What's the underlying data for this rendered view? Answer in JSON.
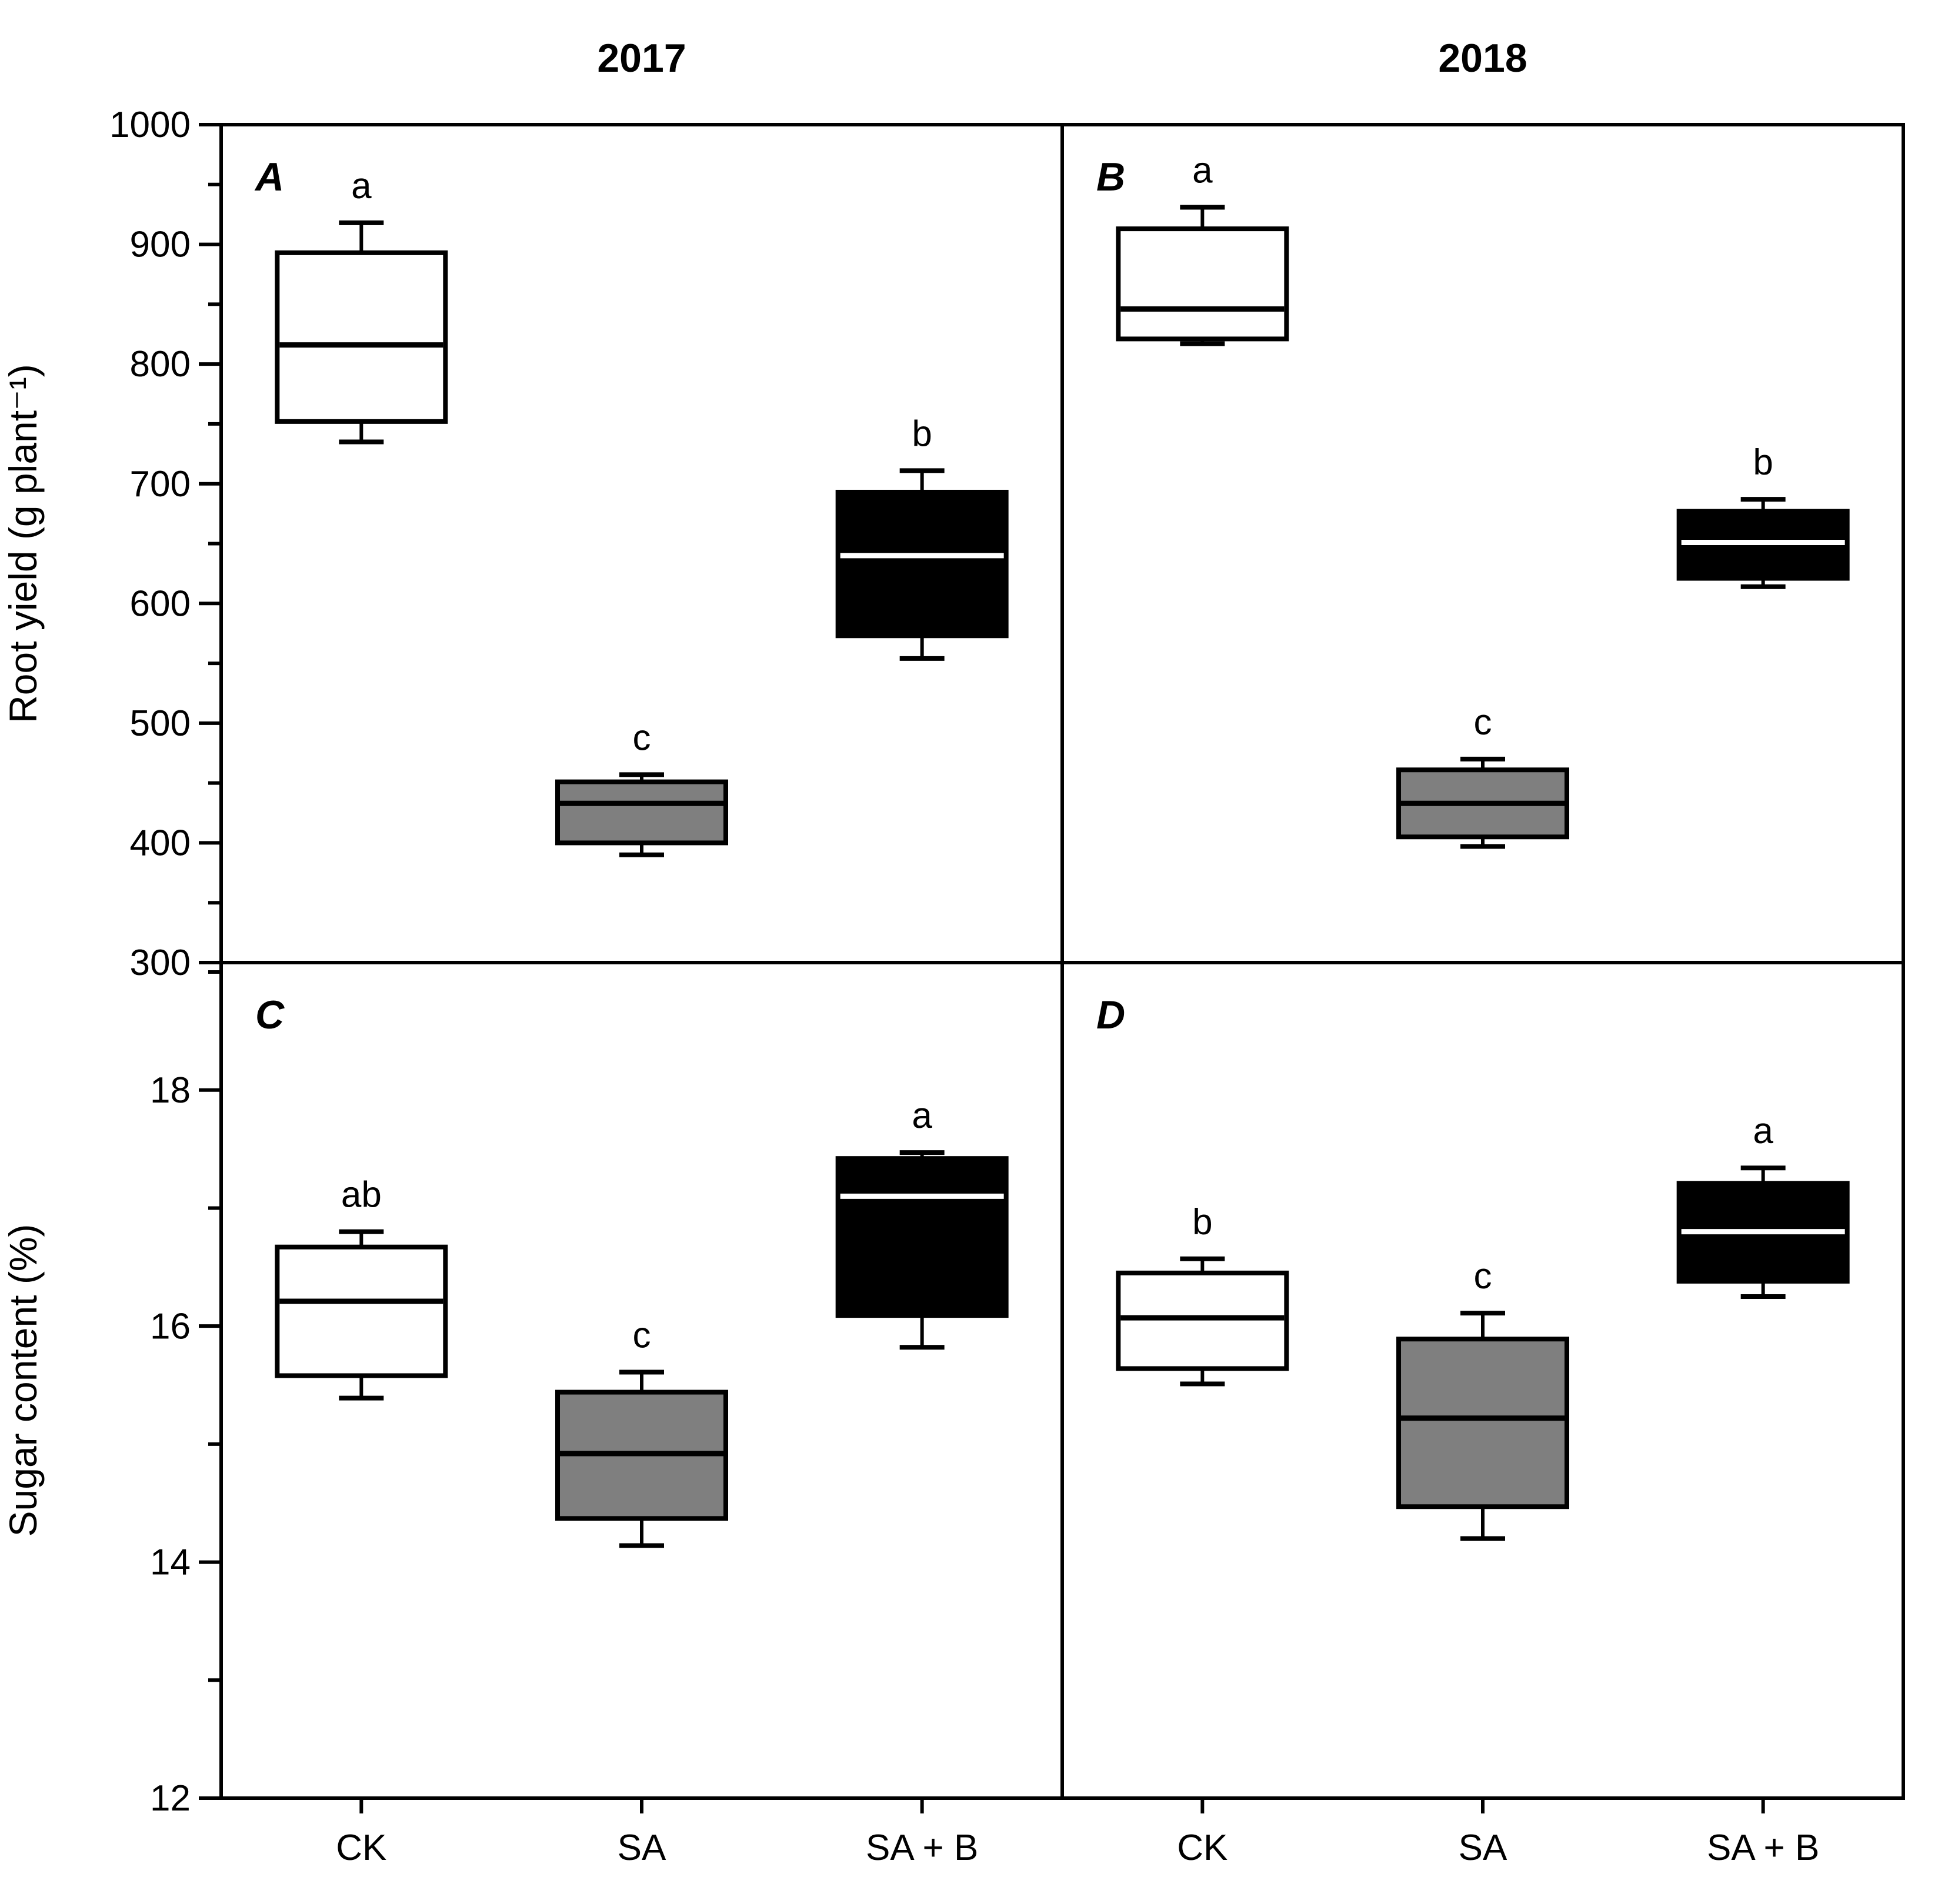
{
  "figure": {
    "background": "#ffffff",
    "frame_color": "#000000"
  },
  "chart_data": {
    "type": "box",
    "title": "",
    "grid": false,
    "legend": "none",
    "columns": [
      {
        "label": "2017"
      },
      {
        "label": "2018"
      }
    ],
    "categories": [
      "CK",
      "SA",
      "SA + B"
    ],
    "box_fill_by_category": {
      "CK": "#ffffff",
      "SA": "#7f7f7f",
      "SA + B": "#000000"
    },
    "rows": [
      {
        "ylabel": "Root yield (g plant⁻¹)",
        "ylim": [
          300,
          1000
        ],
        "yticks_major": [
          300,
          400,
          500,
          600,
          700,
          800,
          900,
          1000
        ],
        "ytick_labels": [
          "300",
          "400",
          "500",
          "600",
          "700",
          "800",
          "900",
          "1000"
        ],
        "yticks_minor": [
          350,
          450,
          550,
          650,
          750,
          850,
          950
        ]
      },
      {
        "ylabel": "Sugar content (%)",
        "ylim": [
          12,
          19.08
        ],
        "yticks_major": [
          12,
          14,
          16,
          18
        ],
        "ytick_labels": [
          "12",
          "14",
          "16",
          "18"
        ],
        "yticks_minor": [
          13,
          15,
          17,
          19
        ]
      }
    ],
    "panels": [
      {
        "label": "A",
        "row": 0,
        "col": 0,
        "boxes": [
          {
            "category": "CK",
            "low": 735,
            "q1": 752,
            "median": 816,
            "q3": 893,
            "high": 918,
            "sig": "a"
          },
          {
            "category": "SA",
            "low": 390,
            "q1": 400,
            "median": 433,
            "q3": 451,
            "high": 457,
            "sig": "c"
          },
          {
            "category": "SA + B",
            "low": 554,
            "q1": 573,
            "median": 640,
            "q3": 693,
            "high": 711,
            "sig": "b"
          }
        ]
      },
      {
        "label": "B",
        "row": 0,
        "col": 1,
        "boxes": [
          {
            "category": "CK",
            "low": 817,
            "q1": 821,
            "median": 846,
            "q3": 913,
            "high": 931,
            "sig": "a"
          },
          {
            "category": "SA",
            "low": 397,
            "q1": 405,
            "median": 433,
            "q3": 461,
            "high": 470,
            "sig": "c"
          },
          {
            "category": "SA + B",
            "low": 614,
            "q1": 621,
            "median": 651,
            "q3": 677,
            "high": 687,
            "sig": "b"
          }
        ]
      },
      {
        "label": "C",
        "row": 1,
        "col": 0,
        "boxes": [
          {
            "category": "CK",
            "low": 15.39,
            "q1": 15.58,
            "median": 16.21,
            "q3": 16.67,
            "high": 16.8,
            "sig": "ab"
          },
          {
            "category": "SA",
            "low": 14.14,
            "q1": 14.37,
            "median": 14.92,
            "q3": 15.44,
            "high": 15.61,
            "sig": "c"
          },
          {
            "category": "SA + B",
            "low": 15.82,
            "q1": 16.09,
            "median": 17.1,
            "q3": 17.42,
            "high": 17.47,
            "sig": "a"
          }
        ]
      },
      {
        "label": "D",
        "row": 1,
        "col": 1,
        "boxes": [
          {
            "category": "CK",
            "low": 15.51,
            "q1": 15.64,
            "median": 16.07,
            "q3": 16.45,
            "high": 16.57,
            "sig": "b"
          },
          {
            "category": "SA",
            "low": 14.2,
            "q1": 14.47,
            "median": 15.22,
            "q3": 15.89,
            "high": 16.11,
            "sig": "c"
          },
          {
            "category": "SA + B",
            "low": 16.25,
            "q1": 16.38,
            "median": 16.8,
            "q3": 17.21,
            "high": 17.34,
            "sig": "a"
          }
        ]
      }
    ]
  }
}
